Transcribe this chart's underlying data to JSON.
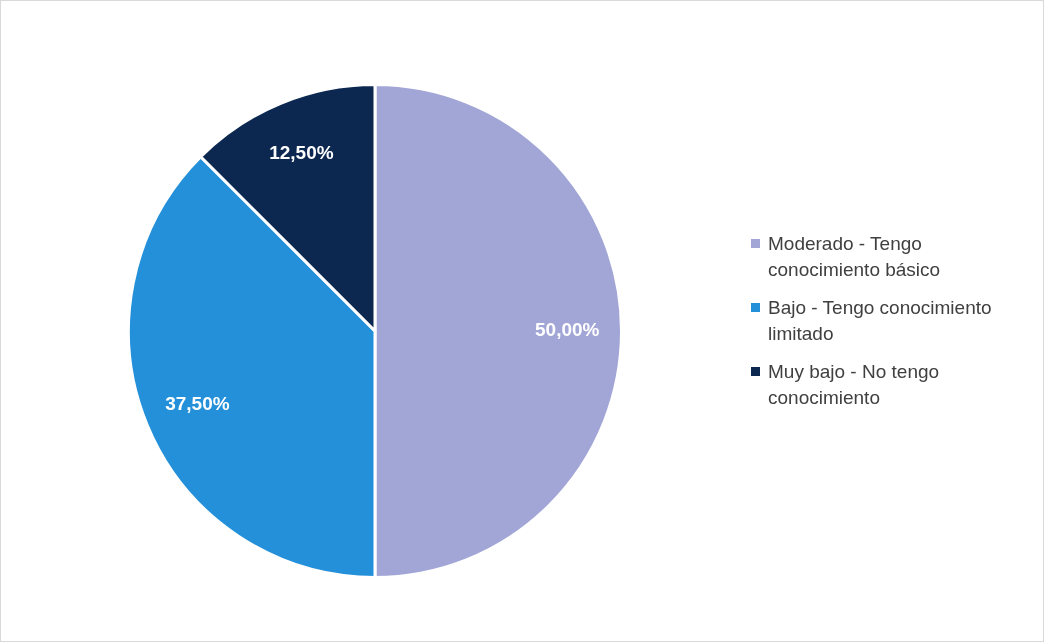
{
  "chart_data": {
    "type": "pie",
    "categories": [
      "Moderado - Tengo conocimiento básico",
      "Bajo - Tengo conocimiento limitado",
      "Muy bajo - No tengo conocimiento"
    ],
    "values": [
      50,
      37.5,
      12.5
    ],
    "value_labels": [
      "50,00%",
      "37,50%",
      "12,50%"
    ],
    "colors": [
      "#a2a6d6",
      "#2490da",
      "#0c2850"
    ],
    "legend": "right"
  }
}
